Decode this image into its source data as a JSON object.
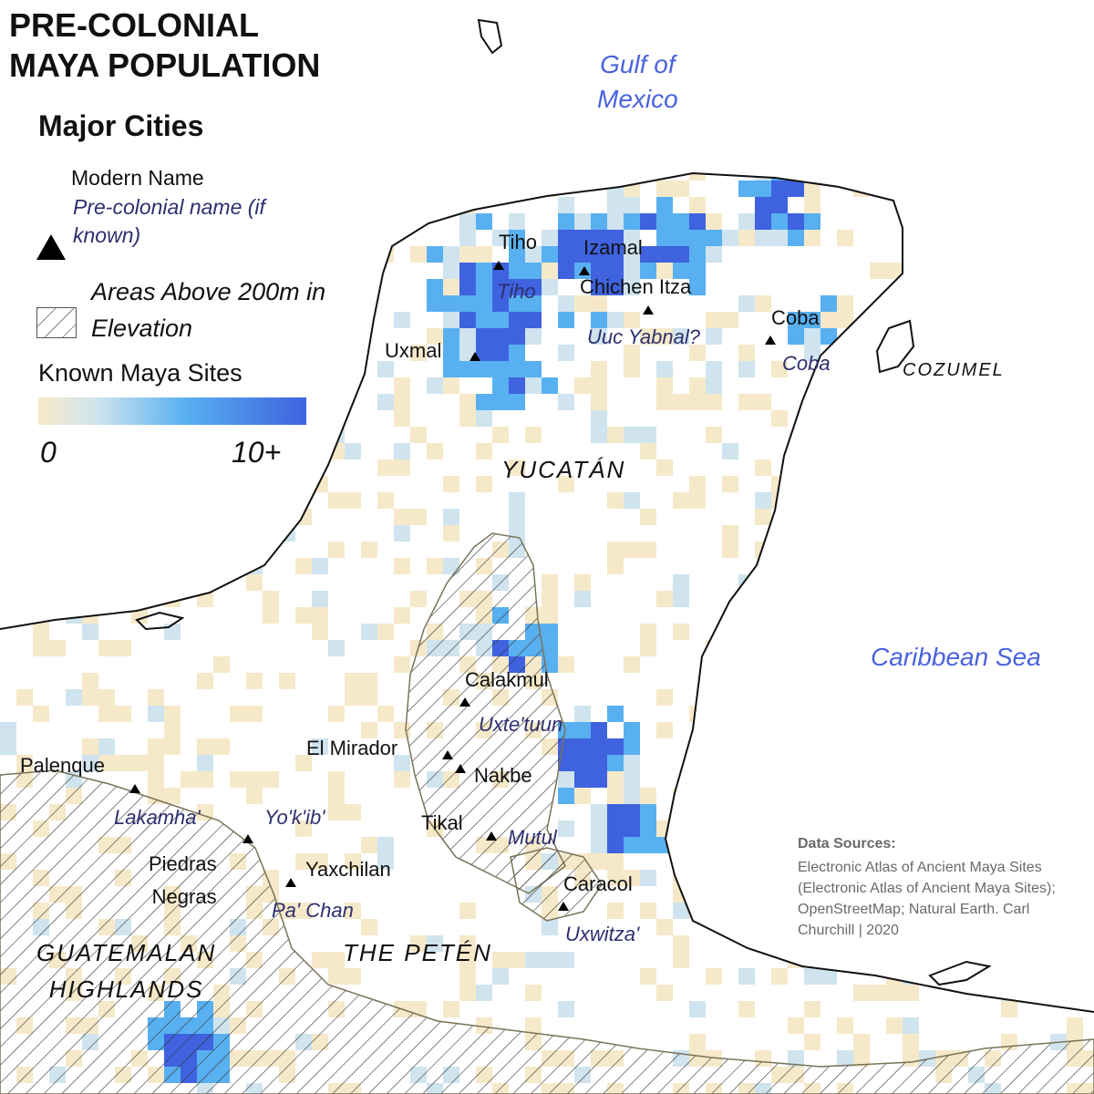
{
  "title": "PRE-COLONIAL\nMAYA POPULATION",
  "legend": {
    "major_cities": "Major Cities",
    "modern_name": "Modern Name",
    "precolonial_name": "Pre-colonial name (if known)",
    "elevation": "Areas Above 200m in Elevation",
    "known_sites": "Known Maya Sites",
    "scale_min": "0",
    "scale_max": "10+"
  },
  "colors": {
    "low": "#f6e9c9",
    "pale": "#cfe4ee",
    "mid": "#58b0f0",
    "high": "#3f62df",
    "coast": "#111111",
    "elev_outline": "#7a7358",
    "water_label": "#4a63dd",
    "precolonial_label": "#2e2f6e"
  },
  "water_bodies": [
    "Gulf of\nMexico",
    "Caribbean Sea"
  ],
  "regions": [
    "YUCATÁN",
    "THE PETÉN",
    "GUATEMALAN\nHIGHLANDS",
    "COZUMEL"
  ],
  "cities": [
    {
      "modern": "Tiho",
      "precolonial": "Tiho"
    },
    {
      "modern": "Izamal",
      "precolonial": ""
    },
    {
      "modern": "Chichen Itza",
      "precolonial": "Uuc Yabnal?"
    },
    {
      "modern": "Coba",
      "precolonial": "Coba"
    },
    {
      "modern": "Uxmal",
      "precolonial": ""
    },
    {
      "modern": "Calakmul",
      "precolonial": "Uxte'tuun"
    },
    {
      "modern": "El Mirador",
      "precolonial": ""
    },
    {
      "modern": "Nakbe",
      "precolonial": ""
    },
    {
      "modern": "Tikal",
      "precolonial": "Mutul"
    },
    {
      "modern": "Palenque",
      "precolonial": "Lakamha'"
    },
    {
      "modern": "Piedras\nNegras",
      "precolonial": "Yo'k'ib'"
    },
    {
      "modern": "Yaxchilan",
      "precolonial": "Pa' Chan"
    },
    {
      "modern": "Caracol",
      "precolonial": "Uxwitza'"
    }
  ],
  "sources": {
    "heading": "Data Sources:",
    "text": "Electronic Atlas of Ancient Maya Sites (Electronic Atlas of Ancient Maya Sites); OpenStreetMap; Natural Earth. Carl Churchill | 2020"
  }
}
